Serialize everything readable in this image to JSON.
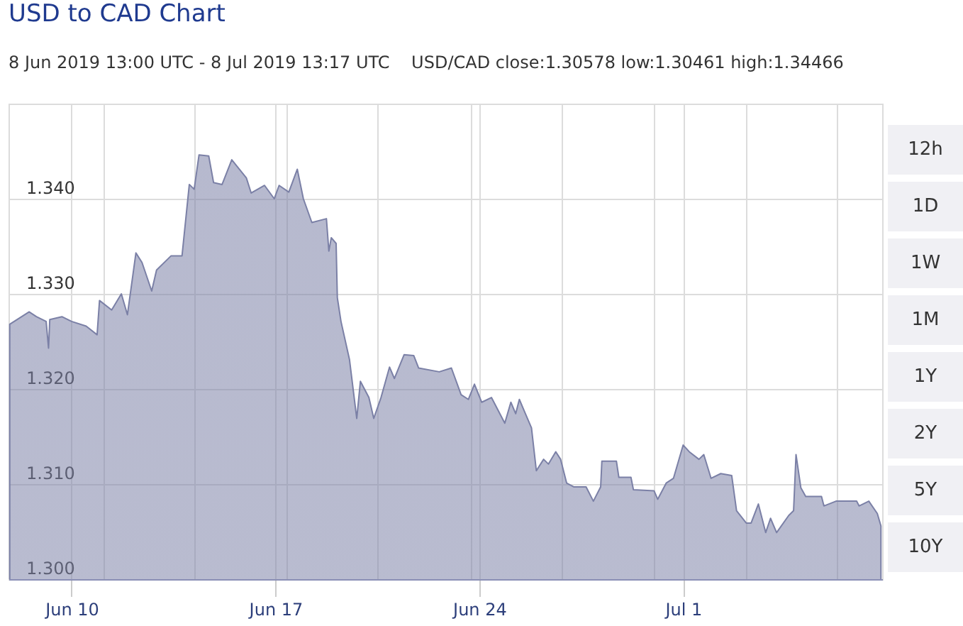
{
  "chart_data": {
    "type": "area",
    "title": "USD to CAD Chart",
    "subtitle": "8 Jun 2019 13:00 UTC - 8 Jul 2019 13:17 UTC    USD/CAD close:1.30578 low:1.30461 high:1.34466",
    "annotations": [
      "12h",
      "1D",
      "1W",
      "1M",
      "1Y",
      "2Y",
      "5Y",
      "10Y"
    ],
    "x": [
      "2019-06-07T21:00",
      "2019-06-08T13:00",
      "2019-06-08T19:00",
      "2019-06-09T03:00",
      "2019-06-09T05:00",
      "2019-06-09T06:00",
      "2019-06-09T16:00",
      "2019-06-10T00:00",
      "2019-06-10T12:00",
      "2019-06-10T21:00",
      "2019-06-10T23:00",
      "2019-06-11T09:00",
      "2019-06-11T17:00",
      "2019-06-11T22:00",
      "2019-06-12T05:00",
      "2019-06-12T10:00",
      "2019-06-12T18:00",
      "2019-06-12T22:00",
      "2019-06-13T10:00",
      "2019-06-13T19:00",
      "2019-06-14T01:00",
      "2019-06-14T05:00",
      "2019-06-14T09:00",
      "2019-06-14T17:00",
      "2019-06-14T21:00",
      "2019-06-15T04:00",
      "2019-06-15T12:00",
      "2019-06-16T00:00",
      "2019-06-16T04:00",
      "2019-06-16T15:00",
      "2019-06-16T23:00",
      "2019-06-17T03:00",
      "2019-06-17T11:00",
      "2019-06-17T18:00",
      "2019-06-17T23:00",
      "2019-06-18T06:00",
      "2019-06-18T18:00",
      "2019-06-18T20:00",
      "2019-06-18T22:00",
      "2019-06-19T02:00",
      "2019-06-19T03:00",
      "2019-06-19T06:00",
      "2019-06-19T13:00",
      "2019-06-19T19:00",
      "2019-06-19T22:00",
      "2019-06-20T05:00",
      "2019-06-20T09:00",
      "2019-06-20T15:00",
      "2019-06-20T22:00",
      "2019-06-21T02:00",
      "2019-06-21T10:00",
      "2019-06-21T18:00",
      "2019-06-21T22:00",
      "2019-06-22T15:00",
      "2019-06-23T01:00",
      "2019-06-23T09:00",
      "2019-06-23T15:00",
      "2019-06-23T20:00",
      "2019-06-24T02:00",
      "2019-06-24T10:00",
      "2019-06-24T21:00",
      "2019-06-25T02:00",
      "2019-06-25T06:00",
      "2019-06-25T09:00",
      "2019-06-25T13:00",
      "2019-06-25T19:00",
      "2019-06-25T23:00",
      "2019-06-26T05:00",
      "2019-06-26T09:00",
      "2019-06-26T15:00",
      "2019-06-26T19:00",
      "2019-06-27T00:00",
      "2019-06-27T06:00",
      "2019-06-27T16:00",
      "2019-06-27T22:00",
      "2019-06-28T04:00",
      "2019-06-28T05:00",
      "2019-06-28T11:00",
      "2019-06-28T17:00",
      "2019-06-28T19:00",
      "2019-06-29T05:00",
      "2019-06-29T07:00",
      "2019-06-30T00:00",
      "2019-06-30T03:00",
      "2019-06-30T10:00",
      "2019-06-30T16:00",
      "2019-07-01T00:00",
      "2019-07-01T05:00",
      "2019-07-01T13:00",
      "2019-07-01T17:00",
      "2019-07-01T23:00",
      "2019-07-02T07:00",
      "2019-07-02T16:00",
      "2019-07-02T20:00",
      "2019-07-03T04:00",
      "2019-07-03T08:00",
      "2019-07-03T14:00",
      "2019-07-03T20:00",
      "2019-07-04T00:00",
      "2019-07-04T05:00",
      "2019-07-04T15:00",
      "2019-07-04T19:00",
      "2019-07-04T21:00",
      "2019-07-05T01:00",
      "2019-07-05T05:00",
      "2019-07-05T18:00",
      "2019-07-05T20:00",
      "2019-07-06T06:00",
      "2019-07-06T23:00",
      "2019-07-07T01:00",
      "2019-07-07T09:00",
      "2019-07-07T16:00",
      "2019-07-07T19:00"
    ],
    "series": [
      {
        "color": "#7b80a6",
        "values": [
          1.3268,
          1.3281,
          1.3276,
          1.3271,
          1.3243,
          1.3273,
          1.3276,
          1.3271,
          1.3266,
          1.3257,
          1.3293,
          1.3283,
          1.33,
          1.3278,
          1.3343,
          1.3333,
          1.3303,
          1.3325,
          1.334,
          1.334,
          1.3415,
          1.341,
          1.3446,
          1.3445,
          1.3417,
          1.3415,
          1.3441,
          1.3422,
          1.3406,
          1.3414,
          1.34,
          1.3414,
          1.3407,
          1.3431,
          1.34,
          1.3375,
          1.3379,
          1.3345,
          1.3359,
          1.3353,
          1.3296,
          1.3271,
          1.3231,
          1.3169,
          1.3208,
          1.3191,
          1.3169,
          1.3191,
          1.3223,
          1.3211,
          1.3236,
          1.3235,
          1.3222,
          1.3218,
          1.3222,
          1.3194,
          1.3189,
          1.3205,
          1.3186,
          1.3191,
          1.3164,
          1.3186,
          1.3174,
          1.3189,
          1.3177,
          1.3159,
          1.3114,
          1.3126,
          1.3121,
          1.3134,
          1.3126,
          1.3101,
          1.3097,
          1.3097,
          1.3082,
          1.3097,
          1.3124,
          1.3124,
          1.3124,
          1.3107,
          1.3107,
          1.3094,
          1.3093,
          1.3084,
          1.3101,
          1.3106,
          1.3141,
          1.3134,
          1.3126,
          1.3131,
          1.3106,
          1.3111,
          1.3109,
          1.3072,
          1.3059,
          1.3059,
          1.3079,
          1.3049,
          1.3064,
          1.3049,
          1.3067,
          1.3072,
          1.3131,
          1.3096,
          1.3087,
          1.3087,
          1.3077,
          1.3082,
          1.3082,
          1.3077,
          1.3082,
          1.3069,
          1.3056
        ]
      }
    ],
    "xlim": [
      "2019-06-07T20:00",
      "2019-07-07T20:00"
    ],
    "xticks": [
      {
        "value": "2019-06-10",
        "label": "Jun 10"
      },
      {
        "value": "2019-06-17",
        "label": "Jun 17"
      },
      {
        "value": "2019-06-24",
        "label": "Jun 24"
      },
      {
        "value": "2019-07-01",
        "label": "Jul 1"
      },
      {
        "value": "2019-06-11T02:00",
        "label": null
      },
      {
        "value": "2019-06-14T05:00",
        "label": null
      },
      {
        "value": "2019-06-17T09:00",
        "label": null
      },
      {
        "value": "2019-06-20T12:00",
        "label": null
      },
      {
        "value": "2019-06-23T17:00",
        "label": null
      },
      {
        "value": "2019-06-26T20:00",
        "label": null
      },
      {
        "value": "2019-06-30T00:00",
        "label": null
      },
      {
        "value": "2019-07-03T04:00",
        "label": null
      },
      {
        "value": "2019-07-06T07:00",
        "label": null
      }
    ],
    "ylim": [
      1.3,
      1.35
    ],
    "yticks": [
      {
        "value": 1.3,
        "label": "1.300"
      },
      {
        "value": 1.31,
        "label": "1.310"
      },
      {
        "value": 1.32,
        "label": "1.320"
      },
      {
        "value": 1.33,
        "label": "1.330"
      },
      {
        "value": 1.34,
        "label": "1.340"
      }
    ],
    "grid": true
  }
}
